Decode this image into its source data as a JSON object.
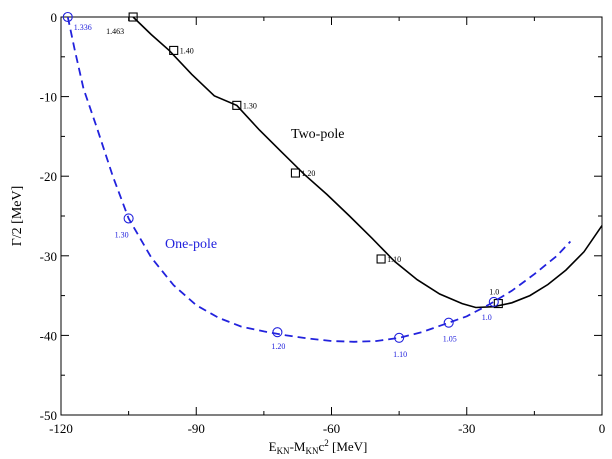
{
  "chart_data": {
    "type": "line",
    "xlabel": {
      "main": "E",
      "sub1": "KN",
      "mid": "-M",
      "sub2": "KN",
      "tail": "c",
      "sup": "2",
      "unit": " [MeV]"
    },
    "ylabel": "Γ/2 [MeV]",
    "xlim": [
      -120,
      0
    ],
    "ylim": [
      -50,
      0
    ],
    "x_ticks": [
      -120,
      -90,
      -60,
      -30,
      0
    ],
    "x_tick_labels": [
      "-120",
      "-90",
      "-60",
      "-30",
      "0"
    ],
    "y_ticks": [
      0,
      -10,
      -20,
      -30,
      -40,
      -50
    ],
    "y_tick_labels": [
      "0",
      "-10",
      "-20",
      "-30",
      "-40",
      "-50"
    ],
    "grid": false,
    "colors": {
      "two_pole": "#000000",
      "one_pole": "#2222dd"
    },
    "series": [
      {
        "name": "Two-pole",
        "line_style": "solid",
        "marker": "square",
        "curve": [
          [
            -104,
            0
          ],
          [
            -100,
            -2.2
          ],
          [
            -96,
            -4.2
          ],
          [
            -91,
            -7.2
          ],
          [
            -86,
            -9.9
          ],
          [
            -81,
            -11.1
          ],
          [
            -76,
            -14.2
          ],
          [
            -71,
            -17.0
          ],
          [
            -66,
            -19.8
          ],
          [
            -61,
            -22.3
          ],
          [
            -56,
            -25.0
          ],
          [
            -51,
            -27.8
          ],
          [
            -46,
            -30.7
          ],
          [
            -41,
            -33.0
          ],
          [
            -36,
            -34.8
          ],
          [
            -31,
            -36.0
          ],
          [
            -28,
            -36.5
          ],
          [
            -24,
            -36.4
          ],
          [
            -20,
            -35.9
          ],
          [
            -16,
            -35.0
          ],
          [
            -12,
            -33.6
          ],
          [
            -8,
            -31.8
          ],
          [
            -4,
            -29.5
          ],
          [
            0,
            -26.2
          ]
        ],
        "markers": [
          {
            "x": -104,
            "y": 0,
            "label": "1.463"
          },
          {
            "x": -95,
            "y": -4.2,
            "label": "1.40"
          },
          {
            "x": -81,
            "y": -11.1,
            "label": "1.30"
          },
          {
            "x": -68,
            "y": -19.6,
            "label": "1.20"
          },
          {
            "x": -49,
            "y": -30.4,
            "label": "1.10"
          },
          {
            "x": -23,
            "y": -36.0,
            "label": "1.0"
          }
        ]
      },
      {
        "name": "One-pole",
        "line_style": "dashed",
        "marker": "circle",
        "curve": [
          [
            -118.5,
            0
          ],
          [
            -117,
            -4
          ],
          [
            -115,
            -9
          ],
          [
            -112,
            -14
          ],
          [
            -108.5,
            -20
          ],
          [
            -105,
            -25.3
          ],
          [
            -100,
            -30.2
          ],
          [
            -95,
            -33.7
          ],
          [
            -90,
            -36.2
          ],
          [
            -85,
            -37.8
          ],
          [
            -80,
            -38.9
          ],
          [
            -75,
            -39.5
          ],
          [
            -70,
            -40.0
          ],
          [
            -65,
            -40.4
          ],
          [
            -60,
            -40.7
          ],
          [
            -55,
            -40.8
          ],
          [
            -50,
            -40.7
          ],
          [
            -45,
            -40.3
          ],
          [
            -40,
            -39.6
          ],
          [
            -35,
            -38.6
          ],
          [
            -30,
            -37.6
          ],
          [
            -25,
            -36.1
          ],
          [
            -20,
            -34.4
          ],
          [
            -15,
            -32.3
          ],
          [
            -10,
            -30.0
          ],
          [
            -7,
            -28.2
          ]
        ],
        "markers": [
          {
            "x": -118.5,
            "y": 0,
            "label": "1.336"
          },
          {
            "x": -105,
            "y": -25.3,
            "label": "1.30"
          },
          {
            "x": -72,
            "y": -39.6,
            "label": "1.20"
          },
          {
            "x": -45,
            "y": -40.3,
            "label": "1.10"
          },
          {
            "x": -34,
            "y": -38.4,
            "label": "1.05"
          },
          {
            "x": -24,
            "y": -35.8,
            "label": "1.0"
          }
        ]
      }
    ]
  }
}
